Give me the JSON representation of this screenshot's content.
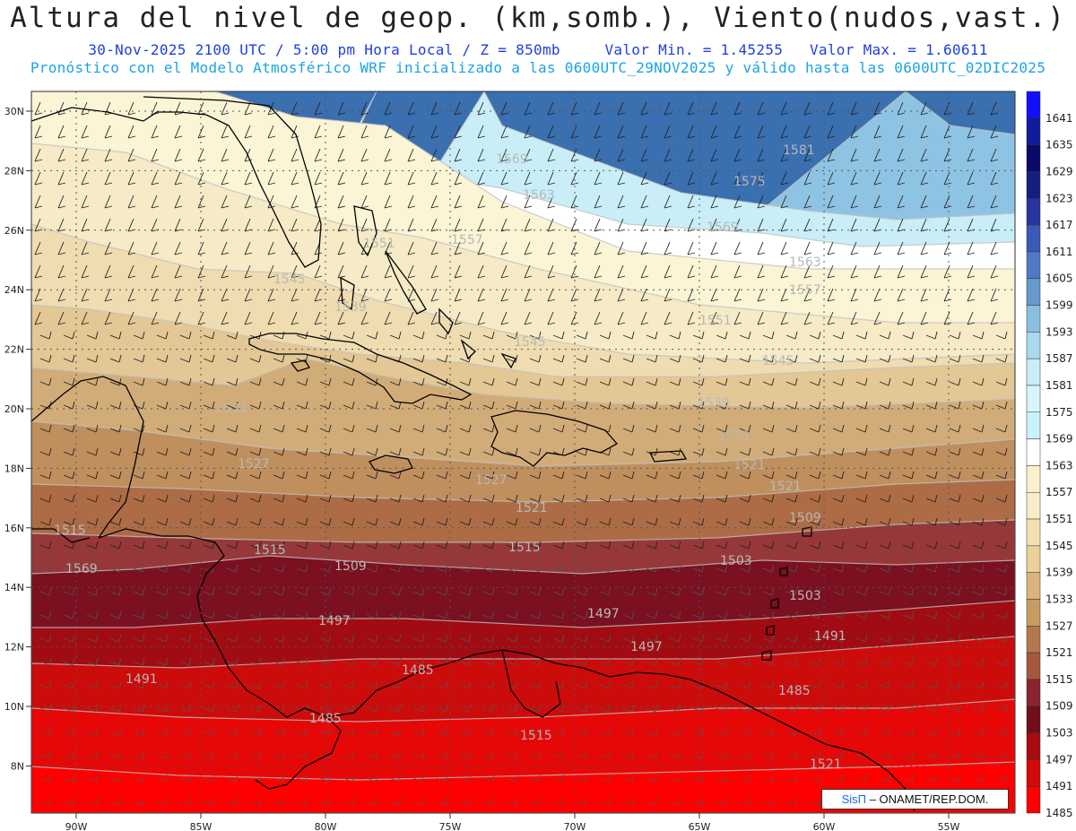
{
  "header": {
    "title": "Altura del nivel de geop. (km,somb.), Viento(nudos,vast.)",
    "subtitle_time": "30-Nov-2025  2100 UTC / 5:00 pm Hora Local / Z = 850mb",
    "value_min": "Valor Min. = 1.45255",
    "value_max": "Valor Max. = 1.60611",
    "subtitle_model": "Pronóstico con el Modelo Atmosférico WRF inicializado a las 0600UTC_29NOV2025 y válido hasta las  0600UTC_02DIC2025"
  },
  "axes": {
    "lon_labels": [
      "90W",
      "85W",
      "80W",
      "75W",
      "70W",
      "65W",
      "60W",
      "55W"
    ],
    "lat_labels": [
      "30N",
      "28N",
      "26N",
      "24N",
      "22N",
      "20N",
      "18N",
      "16N",
      "14N",
      "12N",
      "10N",
      "8N"
    ]
  },
  "colorbar": {
    "levels": [
      "1641",
      "1635",
      "1629",
      "1623",
      "1617",
      "1611",
      "1605",
      "1599",
      "1593",
      "1587",
      "1581",
      "1575",
      "1569",
      "1563",
      "1557",
      "1551",
      "1545",
      "1539",
      "1533",
      "1527",
      "1521",
      "1515",
      "1509",
      "1503",
      "1497",
      "1491",
      "1485"
    ],
    "colors": [
      "#1010ff",
      "#101a9c",
      "#0b0a6b",
      "#141f80",
      "#26359e",
      "#3a59b8",
      "#4f79c4",
      "#6699cc",
      "#8bbfe0",
      "#aad9ef",
      "#c9eef8",
      "#d8f5fb",
      "#c8f3fb",
      "#ffffff",
      "#fbf1cc",
      "#f8ecca",
      "#f3e1b2",
      "#ebd09a",
      "#dcb37c",
      "#c79c63",
      "#b5784c",
      "#a4573d",
      "#8b2430",
      "#730d1a",
      "#a80a12",
      "#d10a0a",
      "#ff0000"
    ]
  },
  "contour_labels": [
    "1569",
    "1563",
    "1557",
    "1581",
    "1575",
    "1569",
    "1563",
    "1557",
    "1551",
    "1545",
    "1545",
    "1551",
    "1539",
    "1545",
    "1539",
    "1533",
    "1533",
    "1527",
    "1527",
    "1521",
    "1521",
    "1521",
    "1515",
    "1515",
    "1515",
    "1509",
    "1509",
    "1503",
    "1503",
    "1497",
    "1497",
    "1497",
    "1491",
    "1491",
    "1485",
    "1485",
    "1485",
    "1515",
    "1521"
  ],
  "badge": {
    "brand": "SisΠ",
    "org": " – ONAMET/REP.DOM."
  }
}
